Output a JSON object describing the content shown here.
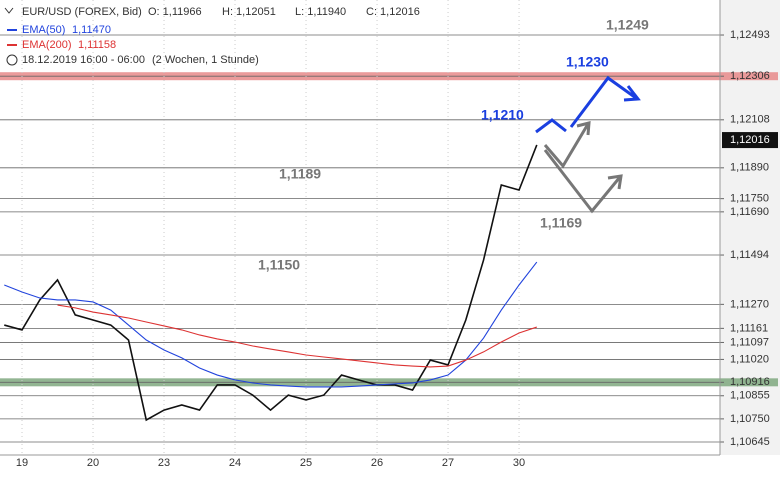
{
  "chart_data": {
    "type": "line",
    "header": {
      "symbol": "EUR/USD (FOREX, Bid)",
      "open": "O: 1,11966",
      "high": "H: 1,12051",
      "low": "L: 1,11940",
      "close": "C: 1,12016"
    },
    "legend_values": [
      "1,11470",
      "1,11158"
    ],
    "period": "18.12.2019 16:00 - 06:00",
    "period_note": "(2 Wochen, 1 Stunde)",
    "annotations": [
      "1,1249",
      "1,1230",
      "1,1210",
      "1,1189",
      "1,1169",
      "1,1150"
    ],
    "x": [
      -0.25,
      0,
      0.25,
      0.5,
      0.75,
      1,
      1.25,
      1.5,
      1.75,
      2,
      2.25,
      2.5,
      2.75,
      3,
      3.25,
      3.5,
      3.75,
      4,
      4.25,
      4.5,
      4.75,
      5,
      5.25,
      5.5,
      5.75,
      6,
      6.25,
      6.5,
      6.75,
      7,
      7.25
    ],
    "series": [
      {
        "name": "EUR/USD",
        "color": "#111111",
        "values": [
          1.11176,
          1.11154,
          1.1129,
          1.11381,
          1.11222,
          1.11199,
          1.11176,
          1.11108,
          1.10745,
          1.1079,
          1.10813,
          1.1079,
          1.10904,
          1.10904,
          1.10858,
          1.1079,
          1.10858,
          1.10836,
          1.10858,
          1.10949,
          1.10926,
          1.10904,
          1.10904,
          1.10881,
          1.11017,
          1.10995,
          1.11199,
          1.11471,
          1.11812,
          1.11789,
          1.11994
        ]
      },
      {
        "name": "EMA(50)",
        "color": "#2244dd",
        "values": [
          1.11358,
          1.11326,
          1.11299,
          1.1129,
          1.1129,
          1.11281,
          1.11244,
          1.11176,
          1.11108,
          1.11063,
          1.11027,
          1.10981,
          1.10949,
          1.10927,
          1.10913,
          1.10904,
          1.10899,
          1.10895,
          1.10895,
          1.10895,
          1.10899,
          1.10904,
          1.10909,
          1.10913,
          1.10927,
          1.10949,
          1.11017,
          1.11117,
          1.11244,
          1.11358,
          1.11462
        ]
      },
      {
        "name": "EMA(200)",
        "color": "#dd3333",
        "values": [
          null,
          null,
          null,
          1.11267,
          1.11254,
          1.11235,
          1.11222,
          1.11208,
          1.1119,
          1.11172,
          1.11154,
          1.11131,
          1.11113,
          1.11099,
          1.11081,
          1.11067,
          1.11054,
          1.1104,
          1.11031,
          1.11022,
          1.11013,
          1.11004,
          1.10995,
          1.1099,
          1.10986,
          1.1099,
          1.11017,
          1.11054,
          1.11099,
          1.1114,
          1.11167
        ]
      }
    ],
    "xlim": [
      -0.31,
      9.83
    ],
    "xticks": [
      {
        "value": 0,
        "label": "19"
      },
      {
        "value": 1,
        "label": "20"
      },
      {
        "value": 2,
        "label": "23"
      },
      {
        "value": 3,
        "label": "24"
      },
      {
        "value": 4,
        "label": "25"
      },
      {
        "value": 5,
        "label": "26"
      },
      {
        "value": 6,
        "label": "27"
      },
      {
        "value": 7,
        "label": "30"
      }
    ],
    "ylim": [
      1.10586,
      1.12652
    ],
    "yticks": [
      {
        "value": 1.12493,
        "label": "1,12493"
      },
      {
        "value": 1.12306,
        "label": "1,12306"
      },
      {
        "value": 1.12108,
        "label": "1,12108"
      },
      {
        "value": 1.1189,
        "label": "1,11890"
      },
      {
        "value": 1.1175,
        "label": "1,11750"
      },
      {
        "value": 1.1169,
        "label": "1,11690"
      },
      {
        "value": 1.11494,
        "label": "1,11494"
      },
      {
        "value": 1.1127,
        "label": "1,11270"
      },
      {
        "value": 1.11161,
        "label": "1,11161"
      },
      {
        "value": 1.11097,
        "label": "1,11097"
      },
      {
        "value": 1.1102,
        "label": "1,11020"
      },
      {
        "value": 1.10916,
        "label": "1,10916"
      },
      {
        "value": 1.10855,
        "label": "1,10855"
      },
      {
        "value": 1.1075,
        "label": "1,10750"
      },
      {
        "value": 1.10645,
        "label": "1,10645"
      }
    ],
    "last_price": {
      "value": 1.12016,
      "label": "1,12016"
    },
    "zones": [
      {
        "value": 1.12306,
        "color": "#e88a8a"
      },
      {
        "value": 1.10916,
        "color": "#7fa87f"
      }
    ]
  }
}
